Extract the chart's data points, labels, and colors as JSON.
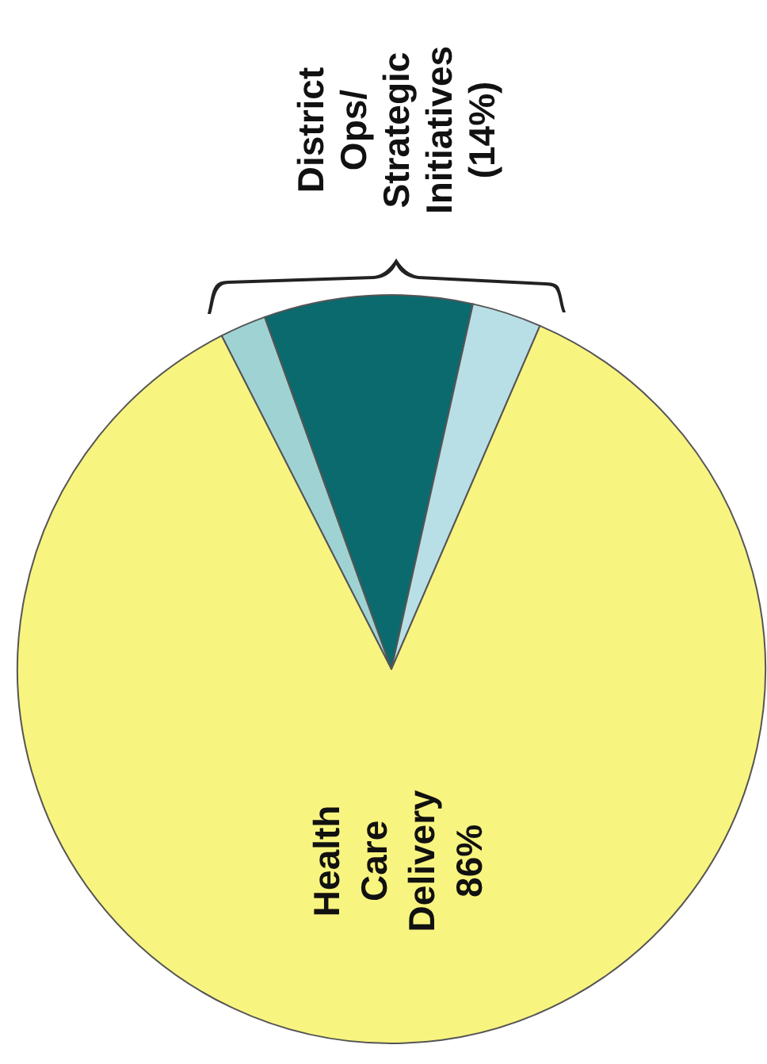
{
  "chart_data": {
    "type": "pie",
    "categories": [
      null,
      null,
      null,
      "Health Care Delivery"
    ],
    "values": [
      2,
      9,
      3,
      86
    ],
    "colors": [
      "#9fd3d3",
      "#0b6a6e",
      "#b9dfe6",
      "#f8f480"
    ],
    "value_labels": [
      null,
      null,
      null,
      "86%"
    ],
    "annotations": [
      "District\nOps/\nStrategic\nInitiatives\n(14%)"
    ],
    "legend": false
  }
}
